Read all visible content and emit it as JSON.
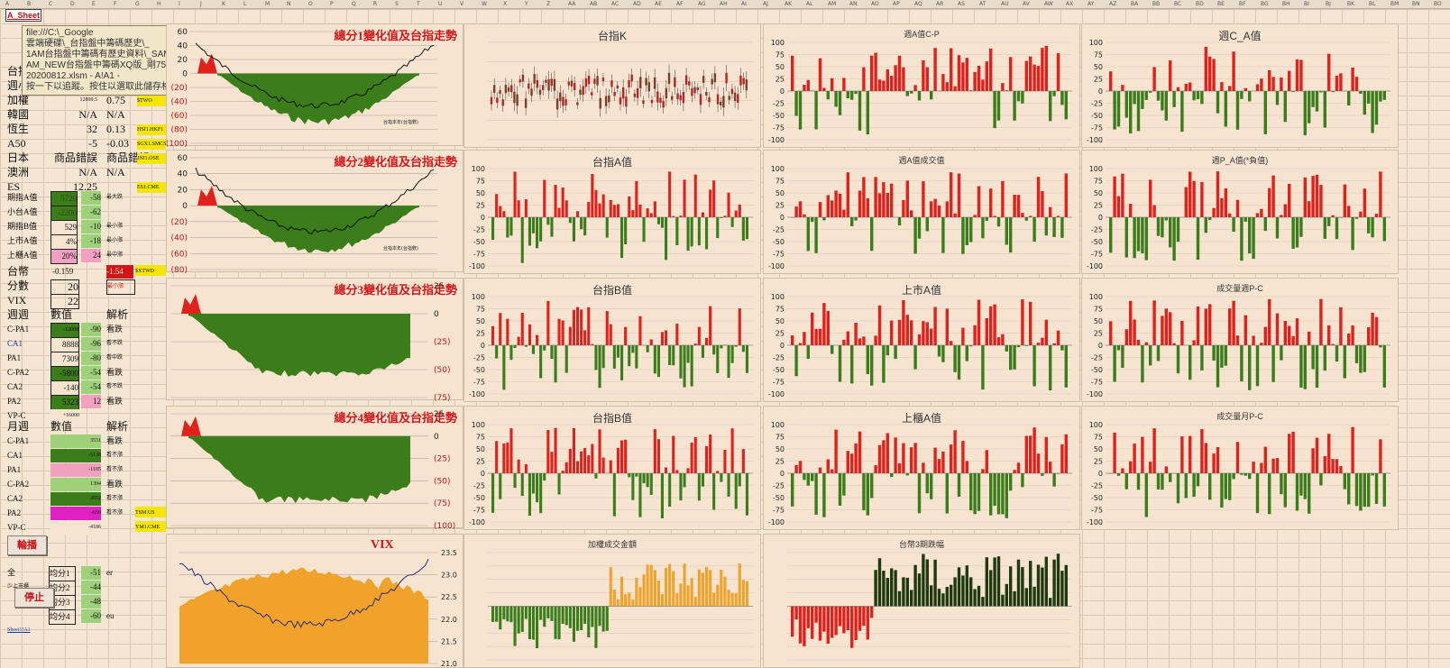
{
  "sheet_tab": "A_Sheet",
  "tooltip_lines": [
    "file:///C:\\_Google",
    "雲端硬碟\\_台指盤中籌碼歷史\\_",
    "1AM台指盤中籌碼有歷史資料\\_SAMPLE_",
    "AM_NEW台指盤中籌碼XQ版_剛7500_8400_",
    "20200812.xlsm - A!A1 -",
    "按一下以追蹤。按住以選取此儲存格。"
  ],
  "column_headers": [
    "A",
    "B",
    "C",
    "D",
    "E",
    "F",
    "G",
    "H",
    "I",
    "J",
    "K",
    "L",
    "M",
    "N",
    "O",
    "P",
    "Q",
    "R",
    "S",
    "T",
    "U",
    "V",
    "W",
    "X",
    "Y",
    "Z",
    "AA",
    "AB",
    "AC",
    "AD",
    "AE",
    "AF",
    "AG",
    "AH",
    "AI",
    "AJ",
    "AK",
    "AL",
    "AM",
    "AN",
    "AO",
    "AP",
    "AQ",
    "AR",
    "AS",
    "AT",
    "AU",
    "AV",
    "AW",
    "AX",
    "AY",
    "AZ",
    "BA",
    "BB",
    "BC",
    "BD",
    "BE",
    "BF",
    "BG",
    "BH",
    "BI",
    "BJ",
    "BK",
    "BL",
    "BM",
    "BN",
    "BO"
  ],
  "market_rows": [
    {
      "label": "台指",
      "value": "",
      "change": "",
      "code": ""
    },
    {
      "label": "週小",
      "value": "",
      "change": "",
      "code": ""
    },
    {
      "label": "加權",
      "value": "12899.5",
      "change": "0.75",
      "code": "$TWO"
    },
    {
      "label": "韓國",
      "value": "N/A",
      "change": "N/A",
      "code": ""
    },
    {
      "label": "恆生",
      "value": "32",
      "change": "0.13",
      "code": "HSI1.HKF1"
    },
    {
      "label": "A50",
      "value": "-5",
      "change": "-0.03",
      "code": "SGX1.SMCS"
    },
    {
      "label": "日本",
      "value": "商品錯誤",
      "change": "商品錯誤",
      "code": "JNI1.OSE"
    },
    {
      "label": "澳洲",
      "value": "N/A",
      "change": "N/A",
      "code": ""
    },
    {
      "label": "ES",
      "value": "12.25",
      "change": "",
      "code": "ES1.CME"
    }
  ],
  "a_value_rows": [
    {
      "label": "期指A值",
      "v1": "5720",
      "v2": "-58",
      "note": "最大跌"
    },
    {
      "label": "小台A值",
      "v1": "-2200",
      "v2": "-62",
      "note": ""
    },
    {
      "label": "期指B值",
      "v1": "529",
      "v2": "-10",
      "note": "最小漲"
    },
    {
      "label": "上市A值",
      "v1": "4%",
      "v2": "-18",
      "note": "最小漲"
    },
    {
      "label": "上櫃A值",
      "v1": "20%",
      "v2": "24",
      "note": "最中漲"
    }
  ],
  "twd": {
    "label": "台幣",
    "value": "-0.159",
    "change": "-1.54",
    "code": "$XTWD"
  },
  "score": {
    "label": "分數",
    "value": "20",
    "note": "最小漲"
  },
  "vix": {
    "label": "VIX",
    "value": "22"
  },
  "weekly": {
    "headers": [
      "週週",
      "數值",
      "解析"
    ],
    "rows": [
      {
        "label": "C-PA1",
        "v1": "-12000",
        "v2": "-90",
        "note": "看跌"
      },
      {
        "label": "CA1",
        "v1": "8888",
        "v2": "-96",
        "note": "看不跌"
      },
      {
        "label": "PA1",
        "v1": "7309",
        "v2": "-80",
        "note": "看中跌"
      },
      {
        "label": "C-PA2",
        "v1": "-5800",
        "v2": "-54",
        "note": "看跌"
      },
      {
        "label": "CA2",
        "v1": "-140",
        "v2": "-54",
        "note": "看不跌"
      },
      {
        "label": "PA2",
        "v1": "5323",
        "v2": "12",
        "note": "看跌"
      },
      {
        "label": "VP-C",
        "v1": "+16000",
        "v2": "",
        "note": ""
      }
    ]
  },
  "monthly": {
    "headers": [
      "月週",
      "數值",
      "解析"
    ],
    "rows": [
      {
        "label": "C-PA1",
        "v1": "3531",
        "note": "看跌"
      },
      {
        "label": "CA1",
        "v1": "-5138",
        "note": "看不漲"
      },
      {
        "label": "PA1",
        "v1": "-1105",
        "note": "看不漲"
      },
      {
        "label": "C-PA2",
        "v1": "1394",
        "note": "看跌"
      },
      {
        "label": "CA2",
        "v1": "2052",
        "note": "看不漲"
      },
      {
        "label": "PA2",
        "v1": "-659",
        "note": "看不漲"
      },
      {
        "label": "VP-C",
        "v1": "-4186",
        "note": ""
      }
    ],
    "codes": [
      "TSM.US",
      "YM1.CME"
    ]
  },
  "buttons": {
    "rotate": "輪播",
    "stop": "停止"
  },
  "avg_rows": [
    {
      "label": "全",
      "avg": "均分1",
      "v": "-51",
      "note": "er"
    },
    {
      "label": "少上市櫃",
      "avg": "均分2",
      "v": "-44",
      "note": ""
    },
    {
      "label": "",
      "avg": "均分3",
      "v": "-48",
      "note": ""
    },
    {
      "label": "",
      "avg": "均分4",
      "v": "-60",
      "note": "eu"
    }
  ],
  "sheet_link": "Sheet1!A1",
  "trend_titles": [
    "總分1變化值及台指走勢",
    "總分2變化值及台指走勢",
    "總分3變化值及台指走勢",
    "總分4變化值及台指走勢"
  ],
  "trend_axes": [
    {
      "ticks": [
        "60",
        "40",
        "20",
        "0",
        "(20)",
        "(40)",
        "(60)",
        "(80)",
        "(100)"
      ],
      "side": "left"
    },
    {
      "ticks": [
        "60",
        "40",
        "20",
        "0",
        "(20)",
        "(40)",
        "(60)",
        "(80)"
      ],
      "side": "left"
    },
    {
      "ticks": [
        "25",
        "0",
        "(25)",
        "(50)",
        "(75)"
      ],
      "side": "right"
    },
    {
      "ticks": [
        "25",
        "0",
        "(25)",
        "(50)",
        "(75)",
        "(100)"
      ],
      "side": "right"
    }
  ],
  "trend_legend": "台指本年(台指數)",
  "vix_title": "VIX",
  "vix_axis": [
    "23.5",
    "23.0",
    "22.5",
    "22.0",
    "21.5",
    "21.0"
  ],
  "bar_panels": [
    {
      "title": "台指K",
      "kind": "candle"
    },
    {
      "title": "週A值C-P",
      "kind": "bar"
    },
    {
      "title": "週C_A值",
      "kind": "bar"
    },
    {
      "title": "台指A值",
      "kind": "bar"
    },
    {
      "title": "週A值成交值",
      "kind": "bar"
    },
    {
      "title": "週P_A值(*負值)",
      "kind": "bar"
    },
    {
      "title": "台指B值",
      "kind": "bar"
    },
    {
      "title": "上市A值",
      "kind": "bar"
    },
    {
      "title": "成交量週P-C",
      "kind": "bar"
    },
    {
      "title": "台指B值",
      "kind": "bar"
    },
    {
      "title": "上櫃A值",
      "kind": "bar"
    },
    {
      "title": "成交量月P-C",
      "kind": "bar"
    },
    {
      "title": "加權成交金額",
      "kind": "orangebar"
    },
    {
      "title": "台幣3期跌幅",
      "kind": "darkbar"
    }
  ],
  "bar_axis": [
    "100",
    "75",
    "50",
    "25",
    "0",
    "-25",
    "-50",
    "-75",
    "-100"
  ],
  "colors": {
    "red": "#e2201c",
    "green": "#3a7d1a",
    "orange": "#f0a22b",
    "dark": "#1f3a10",
    "line": "#2b2b7a"
  }
}
